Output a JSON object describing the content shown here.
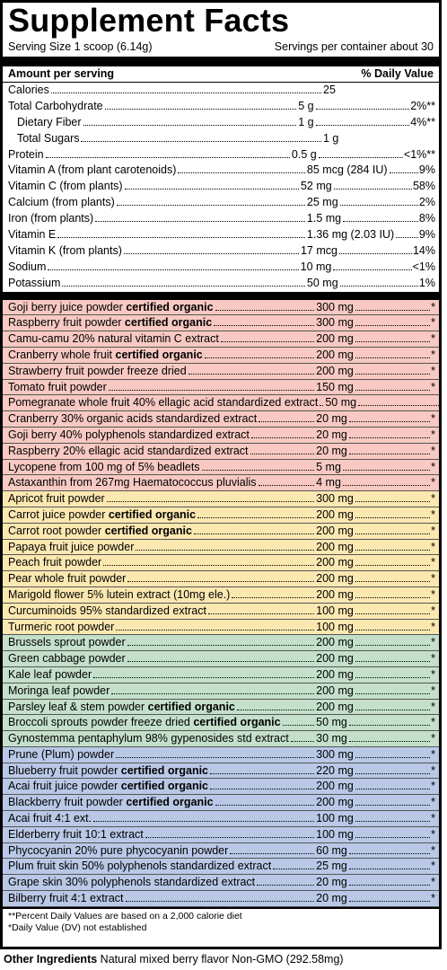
{
  "title": "Supplement Facts",
  "serving_size": "Serving Size 1 scoop (6.14g)",
  "servings_per_container": "Servings per container about 30",
  "header": {
    "amount": "Amount per serving",
    "dv": "% Daily Value"
  },
  "nutrients": [
    {
      "name": "Calories",
      "amount": "25",
      "dv": ""
    },
    {
      "name": "Total Carbohydrate",
      "amount": "5 g",
      "dv": "2%**"
    },
    {
      "name": "Dietary Fiber",
      "amount": "1 g",
      "dv": "4%**"
    },
    {
      "name": "Total Sugars",
      "amount": "1 g",
      "dv": ""
    },
    {
      "name": "Protein",
      "amount": "0.5 g",
      "dv": "<1%**"
    },
    {
      "name": "Vitamin A (from plant carotenoids)",
      "amount": "85 mcg (284 IU)",
      "dv": "9%"
    },
    {
      "name": "Vitamin C (from plants)",
      "amount": "52 mg",
      "dv": "58%"
    },
    {
      "name": "Calcium (from plants)",
      "amount": "25 mg",
      "dv": "2%"
    },
    {
      "name": "Iron (from plants)",
      "amount": "1.5 mg",
      "dv": "8%"
    },
    {
      "name": "Vitamin E",
      "amount": "1.36 mg (2.03 IU)",
      "dv": "9%"
    },
    {
      "name": "Vitamin K (from plants)",
      "amount": "17 mcg",
      "dv": "14%"
    },
    {
      "name": "Sodium",
      "amount": "10 mg",
      "dv": "<1%"
    },
    {
      "name": "Potassium",
      "amount": "50 mg",
      "dv": "1%"
    }
  ],
  "ingredients": [
    {
      "name": "Goji berry juice powder ",
      "bold": "certified organic",
      "amount": "300 mg",
      "dv": "*",
      "group": "red"
    },
    {
      "name": "Raspberry fruit powder ",
      "bold": "certified organic",
      "amount": "300 mg",
      "dv": "*",
      "group": "red"
    },
    {
      "name": "Camu-camu 20% natural vitamin C extract",
      "bold": "",
      "amount": "200 mg",
      "dv": "*",
      "group": "red"
    },
    {
      "name": "Cranberry whole fruit ",
      "bold": "certified organic",
      "amount": "200 mg",
      "dv": "*",
      "group": "red"
    },
    {
      "name": "Strawberry fruit powder freeze dried",
      "bold": "",
      "amount": "200 mg",
      "dv": "*",
      "group": "red"
    },
    {
      "name": "Tomato fruit powder",
      "bold": "",
      "amount": "150 mg",
      "dv": "*",
      "group": "red"
    },
    {
      "name": "Pomegranate whole fruit 40% ellagic acid standardized extract ",
      "bold": "",
      "amount": "50 mg",
      "dv": "*",
      "group": "red"
    },
    {
      "name": "Cranberry 30% organic acids standardized extract",
      "bold": "",
      "amount": "20 mg",
      "dv": "*",
      "group": "red"
    },
    {
      "name": "Goji berry 40% polyphenols standardized extract",
      "bold": "",
      "amount": "20 mg",
      "dv": "*",
      "group": "red"
    },
    {
      "name": "Raspberry 20% ellagic acid standardized extract",
      "bold": "",
      "amount": "20 mg",
      "dv": "*",
      "group": "red"
    },
    {
      "name": "Lycopene from 100 mg of 5% beadlets",
      "bold": "",
      "amount": "5 mg",
      "dv": "*",
      "group": "red"
    },
    {
      "name": "Astaxanthin from 267mg Haematococcus pluvialis",
      "bold": "",
      "amount": "4 mg",
      "dv": "*",
      "group": "red"
    },
    {
      "name": "Apricot fruit powder",
      "bold": "",
      "amount": "300 mg",
      "dv": "*",
      "group": "yellow"
    },
    {
      "name": "Carrot juice powder ",
      "bold": "certified organic",
      "amount": "200 mg",
      "dv": "*",
      "group": "yellow"
    },
    {
      "name": "Carrot root powder ",
      "bold": "certified organic",
      "amount": "200 mg",
      "dv": "*",
      "group": "yellow"
    },
    {
      "name": "Papaya fruit juice powder",
      "bold": "",
      "amount": "200 mg",
      "dv": "*",
      "group": "yellow"
    },
    {
      "name": "Peach fruit powder",
      "bold": "",
      "amount": "200 mg",
      "dv": "*",
      "group": "yellow"
    },
    {
      "name": "Pear whole fruit powder",
      "bold": "",
      "amount": "200 mg",
      "dv": "*",
      "group": "yellow"
    },
    {
      "name": "Marigold flower 5% lutein extract (10mg ele.)",
      "bold": "",
      "amount": "200 mg",
      "dv": "*",
      "group": "yellow"
    },
    {
      "name": "Curcuminoids 95% standardized extract",
      "bold": "",
      "amount": "100 mg",
      "dv": "*",
      "group": "yellow"
    },
    {
      "name": "Turmeric root powder",
      "bold": "",
      "amount": "100 mg",
      "dv": "*",
      "group": "yellow"
    },
    {
      "name": "Brussels sprout powder",
      "bold": "",
      "amount": "200 mg",
      "dv": "*",
      "group": "green"
    },
    {
      "name": "Green cabbage powder",
      "bold": "",
      "amount": "200 mg",
      "dv": "*",
      "group": "green"
    },
    {
      "name": "Kale leaf powder",
      "bold": "",
      "amount": "200 mg",
      "dv": "*",
      "group": "green"
    },
    {
      "name": "Moringa leaf powder",
      "bold": "",
      "amount": "200 mg",
      "dv": "*",
      "group": "green"
    },
    {
      "name": "Parsley leaf & stem powder ",
      "bold": "certified organic",
      "amount": "200 mg",
      "dv": "*",
      "group": "green"
    },
    {
      "name": "Broccoli sprouts powder freeze dried ",
      "bold": "certified organic",
      "amount": "50 mg",
      "dv": "*",
      "group": "green"
    },
    {
      "name": "Gynostemma pentaphylum 98% gypenosides std extract",
      "bold": "",
      "amount": "30 mg",
      "dv": "*",
      "group": "green"
    },
    {
      "name": "Prune (Plum) powder",
      "bold": "",
      "amount": "300 mg",
      "dv": "*",
      "group": "blue"
    },
    {
      "name": "Blueberry fruit powder ",
      "bold": "certified organic",
      "amount": "220 mg",
      "dv": "*",
      "group": "blue"
    },
    {
      "name": "Acai fruit juice powder ",
      "bold": "certified organic",
      "amount": "200 mg",
      "dv": "*",
      "group": "blue"
    },
    {
      "name": "Blackberry fruit powder ",
      "bold": "certified organic",
      "amount": "200 mg",
      "dv": "*",
      "group": "blue"
    },
    {
      "name": "Acai fruit 4:1 ext.",
      "bold": "",
      "amount": "100 mg",
      "dv": "*",
      "group": "blue"
    },
    {
      "name": "Elderberry fruit 10:1 extract",
      "bold": "",
      "amount": "100 mg",
      "dv": "*",
      "group": "blue"
    },
    {
      "name": "Phycocyanin 20% pure phycocyanin powder",
      "bold": "",
      "amount": "60 mg",
      "dv": "*",
      "group": "blue"
    },
    {
      "name": "Plum fruit skin 50% polyphenols standardized extract",
      "bold": "",
      "amount": "25 mg",
      "dv": "*",
      "group": "blue"
    },
    {
      "name": "Grape skin 30% polyphenols standardized extract",
      "bold": "",
      "amount": "20 mg",
      "dv": "*",
      "group": "blue"
    },
    {
      "name": "Bilberry fruit 4:1 extract",
      "bold": "",
      "amount": "20 mg",
      "dv": "*",
      "group": "blue"
    }
  ],
  "footnotes": [
    "**Percent Daily Values are based on a 2,000 calorie diet",
    "*Daily Value (DV) not established"
  ],
  "other_ingredients": {
    "label": "Other Ingredients",
    "text": " Natural mixed berry flavor Non-GMO (292.58mg)"
  },
  "colors": {
    "red": "#f7c9c2",
    "yellow": "#fbe8b1",
    "green": "#c4e0cb",
    "blue": "#b9c8e6"
  }
}
